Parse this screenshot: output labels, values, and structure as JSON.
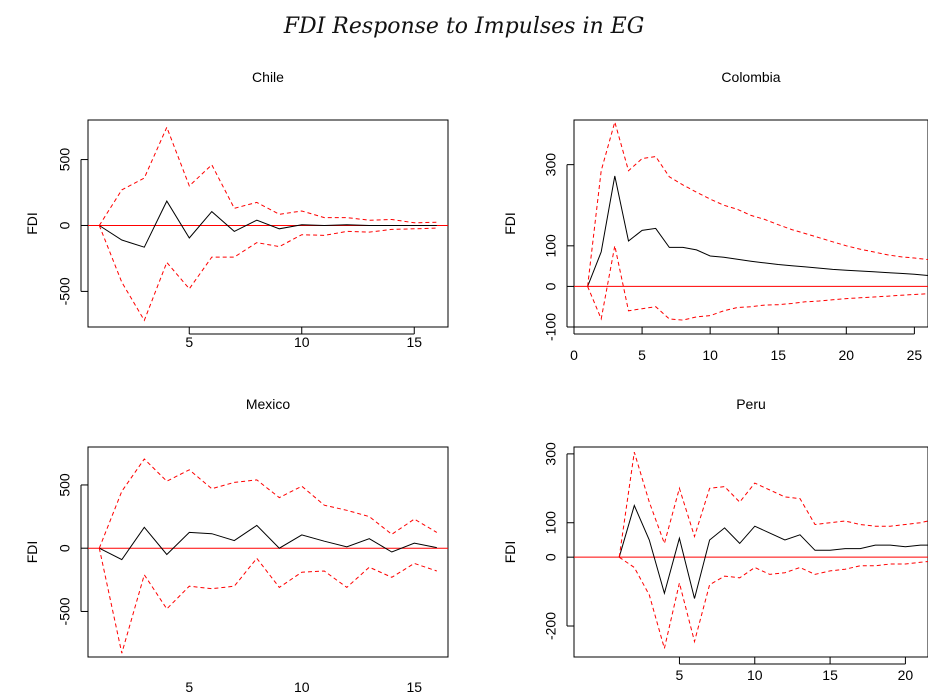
{
  "figure": {
    "title": "FDI Response to Impulses in EG"
  },
  "chart_data": [
    {
      "type": "line",
      "title": "Chile",
      "ylabel": "FDI",
      "xlabel": "",
      "xlim": [
        0.5,
        16.5
      ],
      "ylim": [
        -770,
        800
      ],
      "xticks": [
        5,
        10,
        15
      ],
      "yticks": [
        -500,
        0,
        500
      ],
      "x": [
        1,
        2,
        3,
        4,
        5,
        6,
        7,
        8,
        9,
        10,
        11,
        12,
        13,
        14,
        15,
        16
      ],
      "series": [
        {
          "role": "response",
          "color": "#000000",
          "values": [
            0,
            -110,
            -165,
            185,
            -95,
            105,
            -45,
            40,
            -25,
            5,
            0,
            5,
            0,
            0,
            0,
            0
          ]
        },
        {
          "role": "upper",
          "color": "#ff0000",
          "values": [
            0,
            270,
            360,
            745,
            300,
            460,
            130,
            175,
            85,
            110,
            60,
            60,
            40,
            45,
            20,
            25
          ]
        },
        {
          "role": "lower",
          "color": "#ff0000",
          "values": [
            0,
            -430,
            -720,
            -280,
            -480,
            -240,
            -240,
            -130,
            -160,
            -70,
            -75,
            -45,
            -50,
            -30,
            -25,
            -20
          ]
        }
      ],
      "zero_line_color": "#ff0000"
    },
    {
      "type": "line",
      "title": "Colombia",
      "ylabel": "FDI",
      "xlabel": "",
      "xlim": [
        0,
        26
      ],
      "ylim": [
        -100,
        410
      ],
      "xticks": [
        0,
        5,
        10,
        15,
        20,
        25
      ],
      "yticks": [
        -100,
        0,
        100,
        300
      ],
      "x": [
        1,
        2,
        3,
        4,
        5,
        6,
        7,
        8,
        9,
        10,
        11,
        12,
        13,
        14,
        15,
        16,
        17,
        18,
        19,
        20,
        21,
        22,
        23,
        24,
        25,
        26
      ],
      "series": [
        {
          "role": "response",
          "color": "#000000",
          "values": [
            0,
            85,
            272,
            112,
            138,
            143,
            96,
            96,
            90,
            75,
            72,
            67,
            62,
            58,
            54,
            51,
            48,
            45,
            42,
            40,
            38,
            36,
            34,
            32,
            30,
            27
          ]
        },
        {
          "role": "upper",
          "color": "#ff0000",
          "values": [
            0,
            285,
            405,
            285,
            315,
            320,
            270,
            250,
            232,
            215,
            200,
            190,
            175,
            165,
            152,
            140,
            130,
            120,
            110,
            100,
            92,
            85,
            78,
            73,
            70,
            66
          ]
        },
        {
          "role": "lower",
          "color": "#ff0000",
          "values": [
            0,
            -80,
            100,
            -60,
            -55,
            -50,
            -80,
            -83,
            -75,
            -72,
            -60,
            -52,
            -50,
            -46,
            -45,
            -42,
            -38,
            -36,
            -33,
            -30,
            -28,
            -26,
            -24,
            -22,
            -20,
            -18
          ]
        }
      ],
      "zero_line_color": "#ff0000"
    },
    {
      "type": "line",
      "title": "Mexico",
      "ylabel": "FDI",
      "xlabel": "",
      "xlim": [
        0.5,
        16.5
      ],
      "ylim": [
        -860,
        800
      ],
      "xticks": [
        5,
        10,
        15
      ],
      "yticks": [
        -500,
        0,
        500
      ],
      "x": [
        1,
        2,
        3,
        4,
        5,
        6,
        7,
        8,
        9,
        10,
        11,
        12,
        13,
        14,
        15,
        16
      ],
      "series": [
        {
          "role": "response",
          "color": "#000000",
          "values": [
            0,
            -90,
            165,
            -50,
            125,
            115,
            60,
            180,
            0,
            105,
            55,
            10,
            75,
            -30,
            40,
            5
          ]
        },
        {
          "role": "upper",
          "color": "#ff0000",
          "values": [
            0,
            450,
            705,
            530,
            620,
            470,
            520,
            540,
            400,
            490,
            340,
            300,
            250,
            110,
            230,
            125
          ]
        },
        {
          "role": "lower",
          "color": "#ff0000",
          "values": [
            0,
            -830,
            -210,
            -480,
            -300,
            -320,
            -300,
            -80,
            -310,
            -190,
            -180,
            -310,
            -150,
            -230,
            -120,
            -180
          ]
        }
      ],
      "zero_line_color": "#ff0000"
    },
    {
      "type": "line",
      "title": "Peru",
      "ylabel": "FDI",
      "xlabel": "",
      "xlim": [
        -2,
        21.5
      ],
      "ylim": [
        -290,
        320
      ],
      "xticks": [
        5,
        10,
        15,
        20
      ],
      "yticks": [
        -200,
        0,
        100,
        300
      ],
      "x": [
        1,
        2,
        3,
        4,
        5,
        6,
        7,
        8,
        9,
        10,
        11,
        12,
        13,
        14,
        15,
        16,
        17,
        18,
        19,
        20,
        21,
        22
      ],
      "series": [
        {
          "role": "response",
          "color": "#000000",
          "values": [
            0,
            150,
            50,
            -105,
            55,
            -120,
            50,
            85,
            40,
            90,
            70,
            50,
            65,
            20,
            20,
            25,
            25,
            35,
            35,
            30,
            35,
            35
          ]
        },
        {
          "role": "upper",
          "color": "#ff0000",
          "values": [
            0,
            305,
            160,
            40,
            200,
            60,
            200,
            205,
            160,
            215,
            195,
            175,
            170,
            95,
            100,
            105,
            95,
            90,
            90,
            95,
            100,
            110
          ]
        },
        {
          "role": "lower",
          "color": "#ff0000",
          "values": [
            0,
            -30,
            -110,
            -265,
            -75,
            -245,
            -80,
            -55,
            -60,
            -30,
            -50,
            -45,
            -30,
            -50,
            -40,
            -35,
            -25,
            -25,
            -20,
            -20,
            -15,
            -10
          ]
        }
      ],
      "zero_line_color": "#ff0000"
    }
  ]
}
